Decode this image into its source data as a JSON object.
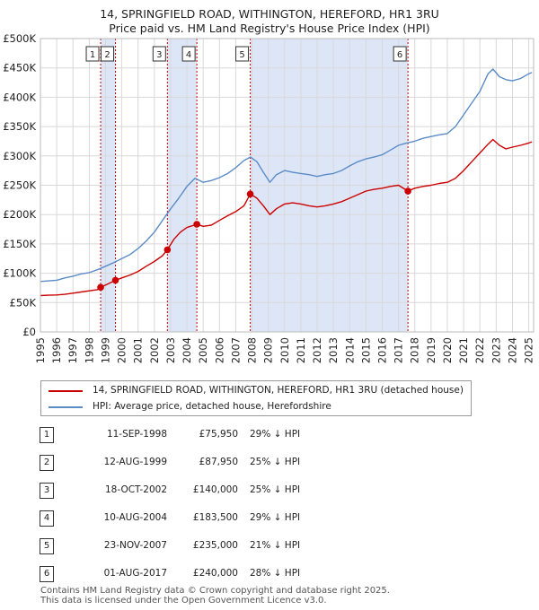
{
  "title_line1": "14, SPRINGFIELD ROAD, WITHINGTON, HEREFORD, HR1 3RU",
  "title_line2": "Price paid vs. HM Land Registry's House Price Index (HPI)",
  "colors": {
    "property": "#cc0000",
    "hpi": "#5b8cc8",
    "band": "#dde6f7",
    "grid": "#d8d8d8",
    "vline": "#cc0000"
  },
  "legend": {
    "property_label": "14, SPRINGFIELD ROAD, WITHINGTON, HEREFORD, HR1 3RU (detached house)",
    "hpi_label": "HPI: Average price, detached house, Herefordshire"
  },
  "transactions": [
    {
      "num": "1",
      "date": "11-SEP-1998",
      "price": "£75,950",
      "hpi": "29% ↓ HPI",
      "year": 1998.7,
      "value": 75950
    },
    {
      "num": "2",
      "date": "12-AUG-1999",
      "price": "£87,950",
      "hpi": "25% ↓ HPI",
      "year": 1999.61,
      "value": 87950
    },
    {
      "num": "3",
      "date": "18-OCT-2002",
      "price": "£140,000",
      "hpi": "25% ↓ HPI",
      "year": 2002.8,
      "value": 140000
    },
    {
      "num": "4",
      "date": "10-AUG-2004",
      "price": "£183,500",
      "hpi": "29% ↓ HPI",
      "year": 2004.61,
      "value": 183500
    },
    {
      "num": "5",
      "date": "23-NOV-2007",
      "price": "£235,000",
      "hpi": "21% ↓ HPI",
      "year": 2007.89,
      "value": 235000
    },
    {
      "num": "6",
      "date": "01-AUG-2017",
      "price": "£240,000",
      "hpi": "28% ↓ HPI",
      "year": 2017.58,
      "value": 240000
    }
  ],
  "footer_line1": "Contains HM Land Registry data © Crown copyright and database right 2025.",
  "footer_line2": "This data is licensed under the Open Government Licence v3.0.",
  "chart_data": {
    "type": "line",
    "title": "14, SPRINGFIELD ROAD, WITHINGTON, HEREFORD, HR1 3RU — Price paid vs. HM Land Registry's House Price Index (HPI)",
    "xlabel": "",
    "ylabel": "",
    "xlim": [
      1995,
      2025.3
    ],
    "ylim": [
      0,
      500000
    ],
    "x_ticks": [
      "1995",
      "1996",
      "1997",
      "1998",
      "1999",
      "2000",
      "2001",
      "2002",
      "2003",
      "2004",
      "2005",
      "2006",
      "2007",
      "2008",
      "2009",
      "2010",
      "2011",
      "2012",
      "2013",
      "2014",
      "2015",
      "2016",
      "2017",
      "2018",
      "2019",
      "2020",
      "2021",
      "2022",
      "2023",
      "2024",
      "2025"
    ],
    "y_ticks": [
      "£0",
      "£50K",
      "£100K",
      "£150K",
      "£200K",
      "£250K",
      "£300K",
      "£350K",
      "£400K",
      "£450K",
      "£500K"
    ],
    "shaded_bands": [
      [
        1998.7,
        1999.61
      ],
      [
        2002.8,
        2004.61
      ],
      [
        2007.89,
        2017.58
      ]
    ],
    "series": [
      {
        "name": "HPI: Average price, detached house, Herefordshire",
        "x": [
          1995.0,
          1995.5,
          1996.0,
          1996.5,
          1997.0,
          1997.5,
          1998.0,
          1998.5,
          1999.0,
          1999.5,
          2000.0,
          2000.5,
          2001.0,
          2001.5,
          2002.0,
          2002.5,
          2003.0,
          2003.5,
          2004.0,
          2004.5,
          2005.0,
          2005.5,
          2006.0,
          2006.5,
          2007.0,
          2007.5,
          2007.9,
          2008.3,
          2008.7,
          2009.1,
          2009.5,
          2010.0,
          2010.5,
          2011.0,
          2011.5,
          2012.0,
          2012.5,
          2013.0,
          2013.5,
          2014.0,
          2014.5,
          2015.0,
          2015.5,
          2016.0,
          2016.5,
          2017.0,
          2017.5,
          2018.0,
          2018.5,
          2019.0,
          2019.5,
          2020.0,
          2020.5,
          2021.0,
          2021.5,
          2022.0,
          2022.5,
          2022.8,
          2023.2,
          2023.6,
          2024.0,
          2024.5,
          2025.0,
          2025.2
        ],
        "values": [
          86000,
          87000,
          88000,
          92000,
          95000,
          99000,
          101000,
          106000,
          112000,
          118000,
          125000,
          132000,
          142000,
          155000,
          170000,
          190000,
          210000,
          228000,
          248000,
          262000,
          255000,
          258000,
          263000,
          270000,
          280000,
          292000,
          298000,
          290000,
          272000,
          255000,
          268000,
          275000,
          272000,
          270000,
          268000,
          265000,
          268000,
          270000,
          275000,
          283000,
          290000,
          295000,
          298000,
          302000,
          310000,
          318000,
          322000,
          325000,
          330000,
          333000,
          336000,
          338000,
          350000,
          370000,
          390000,
          410000,
          440000,
          448000,
          435000,
          430000,
          428000,
          432000,
          440000,
          442000
        ]
      },
      {
        "name": "14, SPRINGFIELD ROAD, WITHINGTON, HEREFORD, HR1 3RU (detached house)",
        "x": [
          1995.0,
          1995.5,
          1996.0,
          1996.5,
          1997.0,
          1997.5,
          1998.0,
          1998.5,
          1998.7,
          1999.0,
          1999.61,
          2000.0,
          2000.5,
          2001.0,
          2001.5,
          2002.0,
          2002.5,
          2002.8,
          2003.2,
          2003.6,
          2004.0,
          2004.61,
          2005.0,
          2005.5,
          2006.0,
          2006.5,
          2007.0,
          2007.5,
          2007.89,
          2008.3,
          2008.7,
          2009.1,
          2009.5,
          2010.0,
          2010.5,
          2011.0,
          2011.5,
          2012.0,
          2012.5,
          2013.0,
          2013.5,
          2014.0,
          2014.5,
          2015.0,
          2015.5,
          2016.0,
          2016.5,
          2017.0,
          2017.58,
          2018.0,
          2018.5,
          2019.0,
          2019.5,
          2020.0,
          2020.5,
          2021.0,
          2021.5,
          2022.0,
          2022.5,
          2022.8,
          2023.2,
          2023.6,
          2024.0,
          2024.5,
          2025.0,
          2025.2
        ],
        "values": [
          62000,
          62500,
          63000,
          64000,
          66000,
          68000,
          70000,
          72000,
          75950,
          80000,
          87950,
          92000,
          97000,
          103000,
          112000,
          120000,
          130000,
          140000,
          158000,
          170000,
          178000,
          183500,
          180000,
          182000,
          190000,
          198000,
          205000,
          215000,
          235000,
          228000,
          215000,
          200000,
          210000,
          218000,
          220000,
          218000,
          215000,
          213000,
          215000,
          218000,
          222000,
          228000,
          234000,
          240000,
          243000,
          245000,
          248000,
          250000,
          240000,
          245000,
          248000,
          250000,
          253000,
          255000,
          262000,
          275000,
          290000,
          305000,
          320000,
          328000,
          318000,
          312000,
          315000,
          318000,
          322000,
          324000
        ]
      }
    ]
  }
}
